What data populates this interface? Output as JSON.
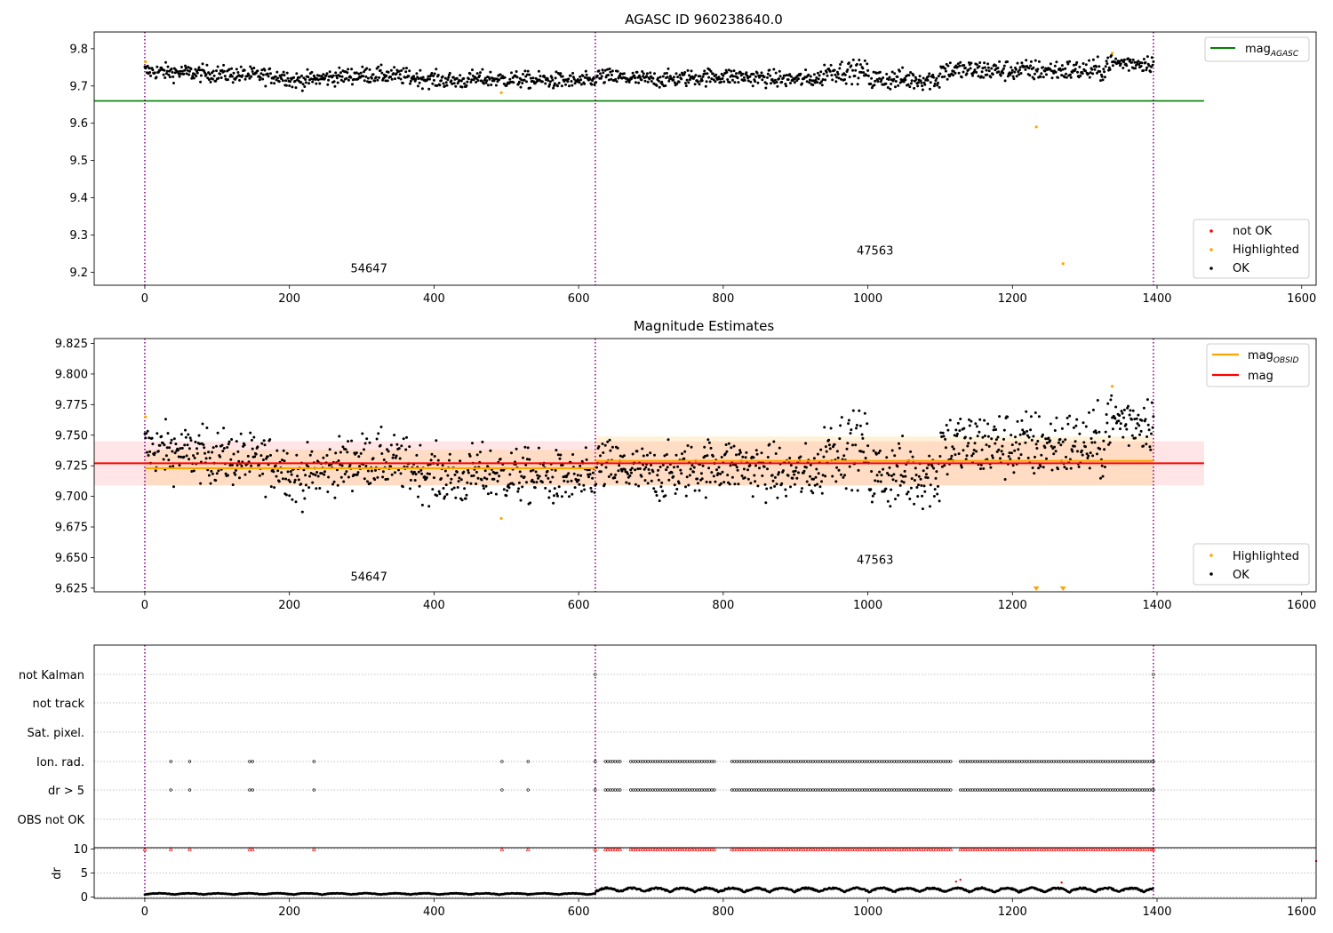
{
  "chart_data": [
    {
      "panel": "agasc",
      "type": "scatter",
      "title": "AGASC ID 960238640.0",
      "xlim": [
        -70,
        1620
      ],
      "ylim": [
        9.165,
        9.845
      ],
      "x_ticks": [
        0,
        200,
        400,
        600,
        800,
        1000,
        1200,
        1400,
        1600
      ],
      "y_ticks": [
        9.2,
        9.3,
        9.4,
        9.5,
        9.6,
        9.7,
        9.8
      ],
      "vlines": [
        0,
        623,
        1395
      ],
      "obsid_labels": [
        {
          "text": "54647",
          "x": 310,
          "y": 9.2
        },
        {
          "text": "47563",
          "x": 1010,
          "y": 9.247
        }
      ],
      "ref_line": {
        "name": "mag_AGASC",
        "y": 9.66,
        "x_range": [
          -70,
          1465
        ],
        "color": "#008000"
      },
      "series": [
        {
          "name": "not OK",
          "color": "#ff0000",
          "points": []
        },
        {
          "name": "Highlighted",
          "color": "#ffa500",
          "points": [
            [
              1,
              9.765
            ],
            [
              493,
              9.682
            ],
            [
              1233,
              9.59
            ],
            [
              1270,
              9.223
            ],
            [
              1338,
              9.788
            ]
          ]
        },
        {
          "name": "OK",
          "color": "#000000",
          "description": "~1390 samples, x from 0 to 1395"
        }
      ],
      "legend_lines": [
        {
          "name": "mag",
          "subscript": "AGASC",
          "color": "#008000"
        }
      ],
      "legend_points": [
        {
          "name": "not OK",
          "color": "#ff0000"
        },
        {
          "name": "Highlighted",
          "color": "#ffa500"
        },
        {
          "name": "OK",
          "color": "#000000"
        }
      ]
    },
    {
      "panel": "estimates",
      "type": "scatter",
      "title": "Magnitude Estimates",
      "xlim": [
        -70,
        1620
      ],
      "ylim": [
        9.622,
        9.829
      ],
      "x_ticks": [
        0,
        200,
        400,
        600,
        800,
        1000,
        1200,
        1400,
        1600
      ],
      "y_ticks": [
        "9.625",
        "9.650",
        "9.675",
        "9.700",
        "9.725",
        "9.750",
        "9.775",
        "9.800",
        "9.825"
      ],
      "vlines": [
        0,
        623,
        1395
      ],
      "obsid_labels": [
        {
          "text": "54647",
          "x": 310,
          "y": 9.631
        },
        {
          "text": "47563",
          "x": 1010,
          "y": 9.645
        }
      ],
      "mag": {
        "y": 9.727,
        "band": [
          9.709,
          9.745
        ],
        "x_range": [
          -70,
          1465
        ],
        "color": "#ff0000"
      },
      "mag_obsid": [
        {
          "x_range": [
            0,
            623
          ],
          "y": 9.723,
          "band": [
            9.709,
            9.738
          ]
        },
        {
          "x_range": [
            623,
            1395
          ],
          "y": 9.729,
          "band": [
            9.709,
            9.749
          ]
        }
      ],
      "series": [
        {
          "name": "Highlighted",
          "color": "#ffa500",
          "points": [
            [
              1,
              9.765
            ],
            [
              493,
              9.682
            ],
            [
              1338,
              9.79
            ]
          ],
          "offscale_markers": [
            1233,
            1270
          ]
        },
        {
          "name": "OK",
          "color": "#000000",
          "description": "~1390 samples, x from 0 to 1395"
        }
      ],
      "legend_lines": [
        {
          "name": "mag",
          "subscript": "OBSID",
          "color": "#ffa500"
        },
        {
          "name": "mag",
          "subscript": "",
          "color": "#ff0000"
        }
      ],
      "legend_points": [
        {
          "name": "Highlighted",
          "color": "#ffa500"
        },
        {
          "name": "OK",
          "color": "#000000"
        }
      ]
    },
    {
      "panel": "flags",
      "type": "scatter",
      "xlim": [
        -70,
        1620
      ],
      "categories": [
        "not Kalman",
        "not track",
        "Sat. pixel.",
        "Ion. rad.",
        "dr > 5",
        "OBS not OK"
      ],
      "vlines": [
        0,
        623,
        1395
      ],
      "flags": {
        "not Kalman": {
          "points": [
            623,
            1395
          ]
        },
        "not track": {
          "points": []
        },
        "Sat. pixel.": {
          "points": []
        },
        "Ion. rad.": {
          "isolated": [
            36,
            62,
            145,
            149,
            234,
            494,
            530,
            623,
            1395
          ],
          "runs": [
            [
              637,
              660
            ],
            [
              672,
              790
            ],
            [
              812,
              1118
            ],
            [
              1128,
              1395
            ]
          ]
        },
        "dr > 5": {
          "isolated": [
            36,
            62,
            145,
            149,
            234,
            494,
            530,
            623,
            1395
          ],
          "runs": [
            [
              637,
              660
            ],
            [
              672,
              790
            ],
            [
              812,
              1118
            ],
            [
              1128,
              1395
            ]
          ]
        },
        "OBS not OK": {
          "points": []
        }
      }
    },
    {
      "panel": "dr",
      "type": "scatter",
      "xlim": [
        -70,
        1620
      ],
      "ylim": [
        -0.3,
        10.3
      ],
      "ylabel": "dr",
      "x_ticks": [
        0,
        200,
        400,
        600,
        800,
        1000,
        1200,
        1400,
        1600
      ],
      "y_ticks": [
        0,
        5,
        10
      ],
      "vlines": [
        0,
        623,
        1395
      ],
      "clipped_color": "#ff0000",
      "clipped_isolated": [
        0,
        36,
        62,
        145,
        149,
        234,
        494,
        530,
        623,
        1395
      ],
      "clipped_runs": [
        [
          637,
          660
        ],
        [
          672,
          790
        ],
        [
          812,
          1118
        ],
        [
          1128,
          1395
        ]
      ],
      "red_points": [
        [
          1122,
          3.2
        ],
        [
          1128,
          3.6
        ],
        [
          1268,
          3.0
        ],
        [
          1620,
          7.5
        ]
      ],
      "trace_description": "dr ~0.3-0.8 for x<623, oscillating 0.5-2.5 for x>623"
    }
  ]
}
